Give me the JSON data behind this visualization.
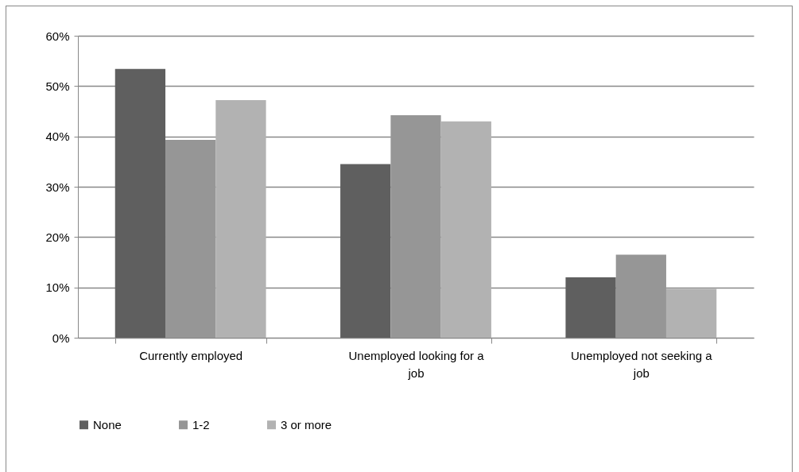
{
  "chart_data": {
    "type": "bar",
    "categories": [
      "Currently employed",
      "Unemployed looking for a job",
      "Unemployed not seeking a job"
    ],
    "series": [
      {
        "name": "None",
        "color": "#5f5f5f",
        "values": [
          53.4,
          34.5,
          12.0
        ]
      },
      {
        "name": "1-2",
        "color": "#969696",
        "values": [
          39.3,
          44.2,
          16.5
        ]
      },
      {
        "name": "3 or more",
        "color": "#b2b2b2",
        "values": [
          47.2,
          43.0,
          9.7
        ]
      }
    ],
    "ylim": [
      0,
      60
    ],
    "yticks": [
      {
        "value": 0,
        "label": "0%"
      },
      {
        "value": 10,
        "label": "10%"
      },
      {
        "value": 20,
        "label": "20%"
      },
      {
        "value": 30,
        "label": "30%"
      },
      {
        "value": 40,
        "label": "40%"
      },
      {
        "value": 50,
        "label": "50%"
      },
      {
        "value": 60,
        "label": "60%"
      }
    ],
    "grid": "y",
    "legend": "bottom"
  }
}
